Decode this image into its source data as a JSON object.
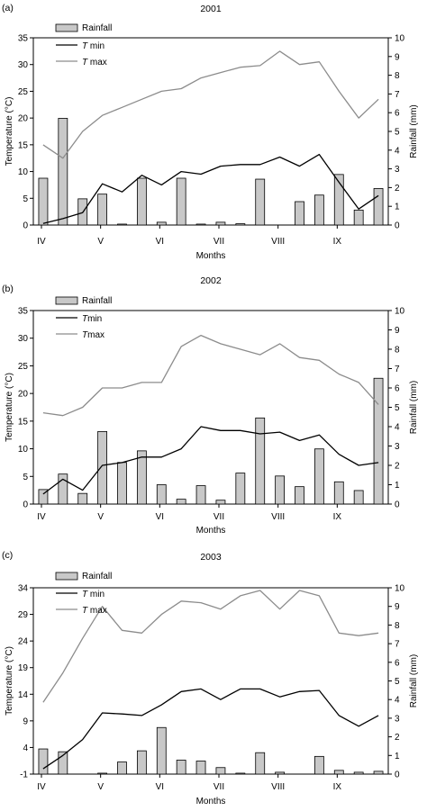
{
  "chart_data": [
    {
      "type": "bar",
      "panel_label": "(a)",
      "title": "2001",
      "xlabel": "Months",
      "ylabel": "Temperature (°C)",
      "y2label": "Rainfall (mm)",
      "ylim": [
        0,
        35
      ],
      "y_ticks": [
        0,
        5,
        10,
        15,
        20,
        25,
        30,
        35
      ],
      "y2lim": [
        0,
        10
      ],
      "y2_ticks": [
        0,
        1,
        2,
        3,
        4,
        5,
        6,
        7,
        8,
        9,
        10
      ],
      "month_labels": [
        "IV",
        "V",
        "VI",
        "VII",
        "VIII",
        "IX"
      ],
      "grid": false,
      "legend_position": "top-left",
      "legend": {
        "rainfall": "Rainfall",
        "tmin_italic": "T",
        "tmin_rest": " min",
        "tmax_italic": "T",
        "tmax_rest": " max"
      },
      "x": [
        1,
        2,
        3,
        4,
        5,
        6,
        7,
        8,
        9,
        10,
        11,
        12,
        13,
        14,
        15,
        16,
        17,
        18
      ],
      "series": [
        {
          "name": "Rainfall",
          "axis": "right",
          "values": [
            2.5,
            5.7,
            1.4,
            1.65,
            0.05,
            2.5,
            0.15,
            2.5,
            0.05,
            0.15,
            0.07,
            2.45,
            0,
            1.25,
            1.6,
            2.7,
            0.8,
            1.95
          ]
        },
        {
          "name": "T min",
          "axis": "left",
          "values": [
            0.3,
            1.2,
            2.3,
            7.7,
            6.2,
            9.3,
            7.5,
            10.0,
            9.5,
            11.0,
            11.3,
            11.3,
            12.7,
            11.0,
            13.2,
            8.0,
            3.0,
            5.5
          ]
        },
        {
          "name": "T max",
          "axis": "left",
          "values": [
            15.0,
            12.5,
            17.5,
            20.5,
            22.0,
            23.5,
            25.0,
            25.5,
            27.5,
            28.5,
            29.5,
            29.8,
            32.5,
            30.0,
            30.5,
            25.0,
            20.0,
            23.5
          ]
        }
      ]
    },
    {
      "type": "bar",
      "panel_label": "(b)",
      "title": "2002",
      "xlabel": "Months",
      "ylabel": "Temperature (°C)",
      "y2label": "Rainfall (mm)",
      "ylim": [
        0,
        35
      ],
      "y_ticks": [
        0,
        5,
        10,
        15,
        20,
        25,
        30,
        35
      ],
      "y2lim": [
        0,
        10
      ],
      "y2_ticks": [
        0,
        1,
        2,
        3,
        4,
        5,
        6,
        7,
        8,
        9,
        10
      ],
      "month_labels": [
        "IV",
        "V",
        "VI",
        "VII",
        "VIII",
        "IX"
      ],
      "grid": false,
      "legend_position": "top-left",
      "legend": {
        "rainfall": "Rainfall",
        "tmin_italic": "T",
        "tmin_rest": "min",
        "tmax_italic": "T",
        "tmax_rest": "max"
      },
      "x": [
        1,
        2,
        3,
        4,
        5,
        6,
        7,
        8,
        9,
        10,
        11,
        12,
        13,
        14,
        15,
        16,
        17,
        18
      ],
      "series": [
        {
          "name": "Rainfall",
          "axis": "right",
          "values": [
            0.75,
            1.55,
            0.55,
            3.75,
            2.15,
            2.75,
            1.0,
            0.25,
            0.95,
            0.2,
            1.6,
            4.45,
            1.45,
            0.9,
            2.85,
            1.15,
            0.7,
            6.5
          ]
        },
        {
          "name": "T min",
          "axis": "left",
          "values": [
            1.8,
            4.5,
            2.5,
            7.0,
            7.5,
            8.5,
            8.5,
            10.0,
            14.0,
            13.3,
            13.3,
            12.7,
            13.0,
            11.5,
            12.5,
            9.0,
            7.0,
            7.5
          ]
        },
        {
          "name": "T max",
          "axis": "left",
          "values": [
            16.5,
            16.0,
            17.5,
            21.0,
            21.0,
            22.0,
            22.0,
            28.5,
            30.5,
            29.0,
            28.0,
            27.0,
            29.0,
            26.5,
            26.0,
            23.5,
            22.0,
            18.0
          ]
        }
      ]
    },
    {
      "type": "bar",
      "panel_label": "(c)",
      "title": "2003",
      "xlabel": "Months",
      "ylabel": "Temperature (°C)",
      "y2label": "Rainfall (mm)",
      "ylim": [
        -1,
        34
      ],
      "y_ticks": [
        -1,
        4,
        9,
        14,
        19,
        24,
        29,
        34
      ],
      "y2lim": [
        0,
        10
      ],
      "y2_ticks": [
        0,
        1,
        2,
        3,
        4,
        5,
        6,
        7,
        8,
        9,
        10
      ],
      "month_labels": [
        "IV",
        "V",
        "VI",
        "VII",
        "VIII",
        "IX"
      ],
      "grid": false,
      "legend_position": "top-left",
      "legend": {
        "rainfall": "Rainfall",
        "tmin_italic": "T",
        "tmin_rest": " min",
        "tmax_italic": "T",
        "tmax_rest": " max"
      },
      "x": [
        1,
        2,
        3,
        4,
        5,
        6,
        7,
        8,
        9,
        10,
        11,
        12,
        13,
        14,
        15,
        16,
        17,
        18
      ],
      "series": [
        {
          "name": "Rainfall",
          "axis": "right",
          "values": [
            1.35,
            1.2,
            0,
            0.05,
            0.65,
            1.25,
            2.5,
            0.75,
            0.7,
            0.35,
            0.05,
            1.15,
            0.1,
            0,
            0.95,
            0.2,
            0.1,
            0.15
          ]
        },
        {
          "name": "T min",
          "axis": "left",
          "values": [
            0.0,
            2.5,
            5.5,
            10.5,
            10.3,
            10.0,
            12.0,
            14.5,
            15.0,
            13.0,
            15.0,
            15.0,
            13.5,
            14.5,
            14.7,
            10.0,
            8.0,
            10.0
          ]
        },
        {
          "name": "T max",
          "axis": "left",
          "values": [
            12.5,
            18.0,
            24.5,
            30.5,
            26.0,
            25.5,
            29.0,
            31.5,
            31.2,
            30.0,
            32.5,
            33.5,
            30.0,
            33.5,
            32.5,
            25.5,
            25.0,
            25.5
          ]
        }
      ]
    }
  ]
}
